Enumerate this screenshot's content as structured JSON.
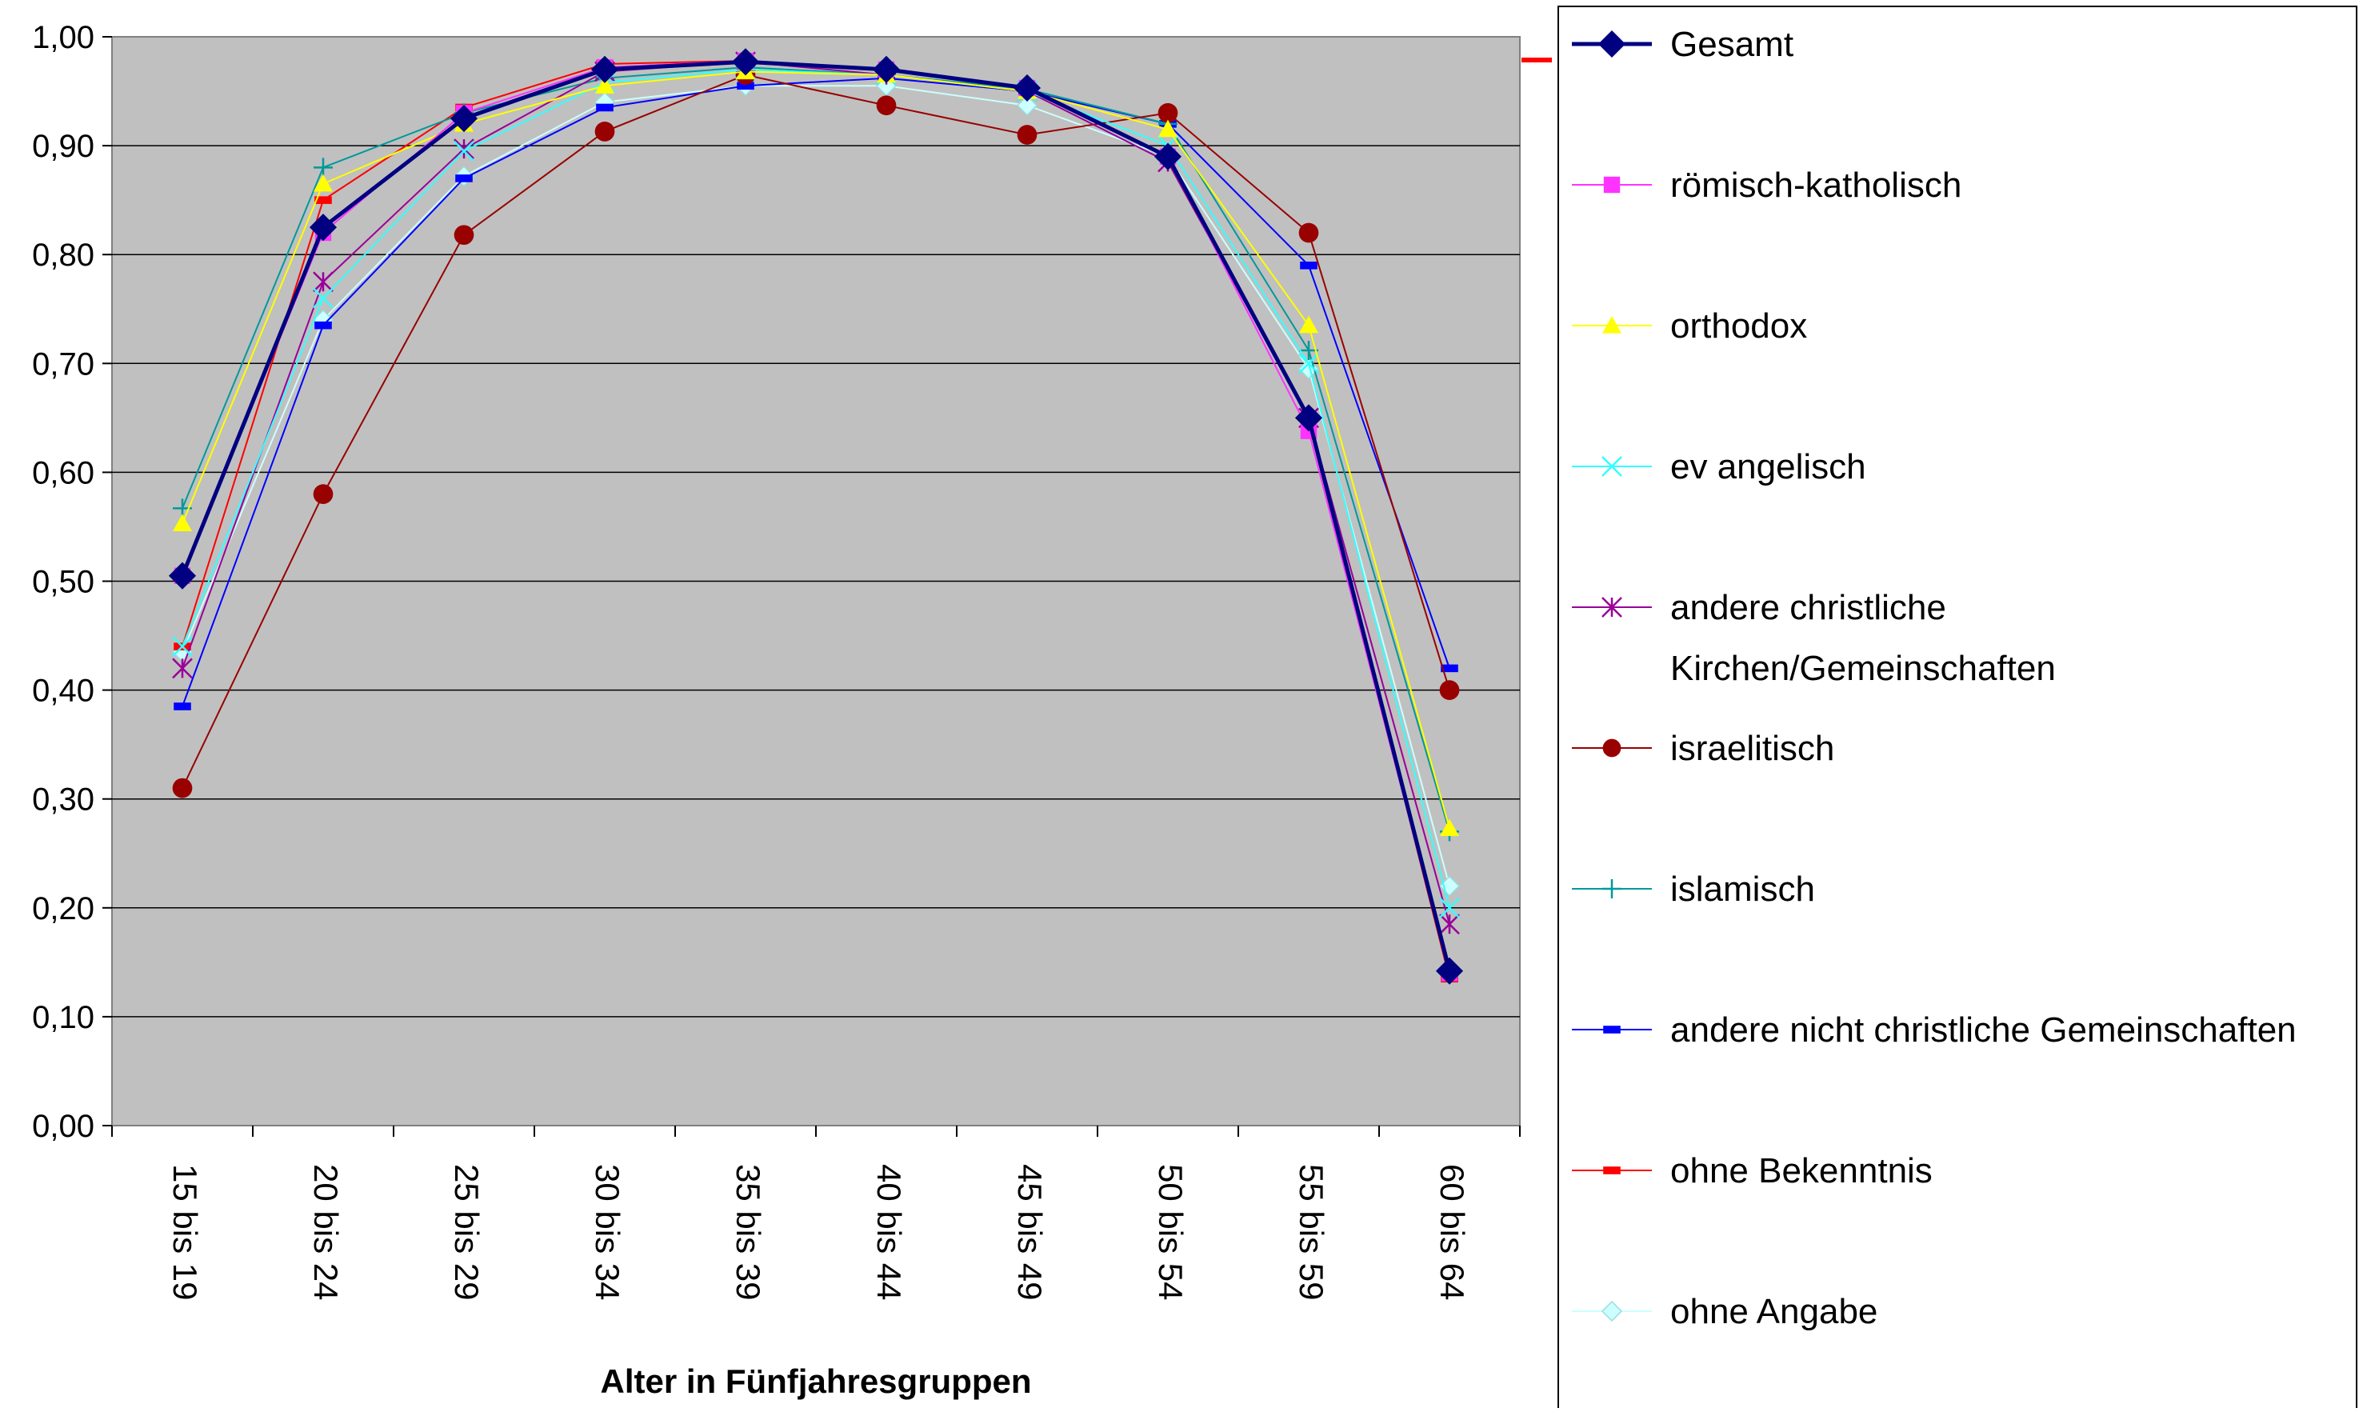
{
  "chart_data": {
    "type": "line",
    "xlabel": "Alter in Fünfjahresgruppen",
    "ylabel": "",
    "ylim": [
      0,
      1
    ],
    "yticks": [
      "0,00",
      "0,10",
      "0,20",
      "0,30",
      "0,40",
      "0,50",
      "0,60",
      "0,70",
      "0,80",
      "0,90",
      "1,00"
    ],
    "categories": [
      "15 bis 19",
      "20 bis 24",
      "25 bis 29",
      "30 bis 34",
      "35 bis 39",
      "40 bis 44",
      "45 bis 49",
      "50 bis 54",
      "55 bis 59",
      "60 bis 64"
    ],
    "grid": "horizontal",
    "plot_background": "#c0c0c0",
    "legend_position": "right",
    "series": [
      {
        "name": "Gesamt",
        "color": "#000080",
        "marker": "diamond",
        "values": [
          0.505,
          0.825,
          0.925,
          0.97,
          0.977,
          0.97,
          0.953,
          0.89,
          0.65,
          0.142
        ]
      },
      {
        "name": "römisch-katholisch",
        "color": "#ff33ff",
        "marker": "square",
        "values": [
          0.505,
          0.82,
          0.93,
          0.972,
          0.978,
          0.97,
          0.953,
          0.89,
          0.638,
          0.14
        ]
      },
      {
        "name": "orthodox",
        "color": "#ffff00",
        "marker": "triangle",
        "values": [
          0.553,
          0.865,
          0.92,
          0.955,
          0.968,
          0.965,
          0.95,
          0.915,
          0.735,
          0.273
        ]
      },
      {
        "name": "ev angelisch",
        "color": "#33ffff",
        "marker": "x",
        "values": [
          0.44,
          0.76,
          0.895,
          0.958,
          0.97,
          0.965,
          0.95,
          0.9,
          0.7,
          0.2
        ]
      },
      {
        "name": "andere christliche Kirchen/Gemeinschaften",
        "color": "#990099",
        "marker": "star",
        "values": [
          0.42,
          0.775,
          0.897,
          0.968,
          0.977,
          0.965,
          0.95,
          0.885,
          0.65,
          0.185
        ]
      },
      {
        "name": "israelitisch",
        "color": "#990000",
        "marker": "circle",
        "values": [
          0.31,
          0.58,
          0.818,
          0.913,
          0.965,
          0.937,
          0.91,
          0.93,
          0.82,
          0.4
        ]
      },
      {
        "name": "islamisch",
        "color": "#009999",
        "marker": "plus",
        "values": [
          0.567,
          0.88,
          0.93,
          0.962,
          0.972,
          0.965,
          0.952,
          0.92,
          0.712,
          0.27
        ]
      },
      {
        "name": "andere nicht christliche Gemeinschaften",
        "color": "#0000ff",
        "marker": "dash",
        "values": [
          0.385,
          0.735,
          0.87,
          0.935,
          0.955,
          0.962,
          0.95,
          0.92,
          0.79,
          0.42
        ]
      },
      {
        "name": "ohne Bekenntnis",
        "color": "#ff0000",
        "marker": "dash",
        "values": [
          0.44,
          0.85,
          0.935,
          0.975,
          0.978,
          0.97,
          0.953,
          0.89,
          0.65,
          0.135
        ]
      },
      {
        "name": "ohne Angabe",
        "color": "#ccffff",
        "marker": "diamond",
        "values": [
          0.435,
          0.74,
          0.872,
          0.94,
          0.955,
          0.955,
          0.937,
          0.89,
          0.695,
          0.22
        ]
      }
    ]
  }
}
